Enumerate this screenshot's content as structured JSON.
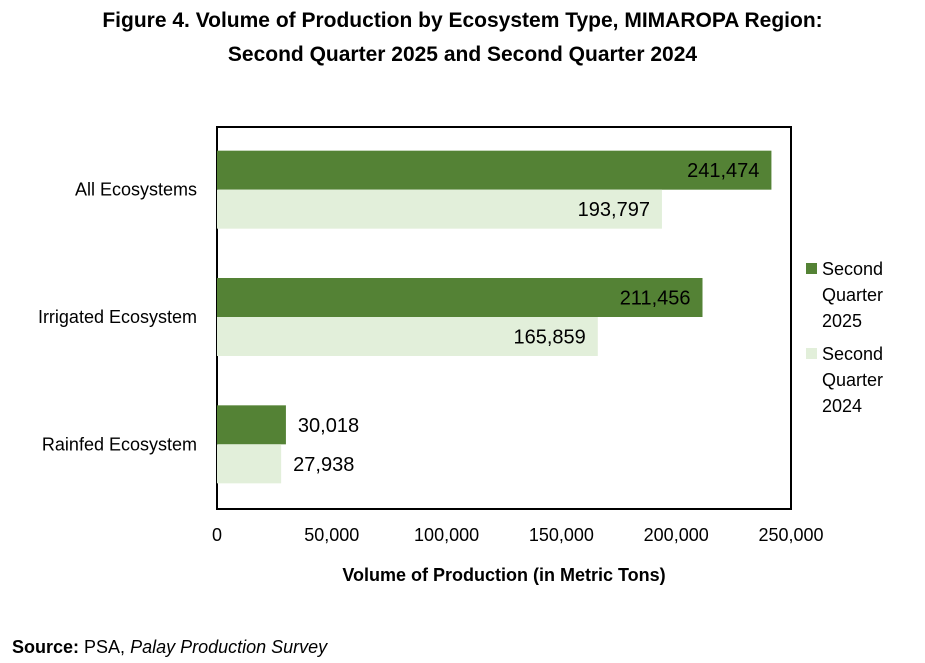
{
  "title": {
    "line1": "Figure 4. Volume of Production by Ecosystem Type, MIMAROPA Region:",
    "line2": "Second Quarter 2025 and Second Quarter 2024"
  },
  "chart_data": {
    "type": "bar",
    "orientation": "horizontal",
    "categories": [
      "All Ecosystems",
      "Irrigated Ecosystem",
      "Rainfed Ecosystem"
    ],
    "series": [
      {
        "name": "Second Quarter 2025",
        "legend_lines": [
          "Second",
          "Quarter",
          "2025"
        ],
        "color": "#548235",
        "values": [
          241474,
          211456,
          30018
        ],
        "labels": [
          "241,474",
          "211,456",
          "30,018"
        ]
      },
      {
        "name": "Second Quarter 2024",
        "legend_lines": [
          "Second",
          "Quarter",
          "2024"
        ],
        "color": "#e2efda",
        "values": [
          193797,
          165859,
          27938
        ],
        "labels": [
          "193,797",
          "165,859",
          "27,938"
        ]
      }
    ],
    "xlabel": "Volume of Production (in Metric Tons)",
    "xlim": [
      0,
      250000
    ],
    "xticks": [
      0,
      50000,
      100000,
      150000,
      200000,
      250000
    ],
    "xtick_labels": [
      "0",
      "50,000",
      "100,000",
      "150,000",
      "200,000",
      "250,000"
    ],
    "legend_position": "right",
    "grid": false
  },
  "source": {
    "label": "Source:",
    "text": " PSA, ",
    "italic": "Palay Production Survey"
  }
}
